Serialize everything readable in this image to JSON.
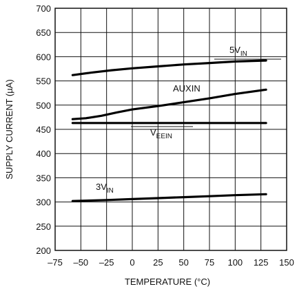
{
  "chart_data": {
    "type": "line",
    "xlabel": "TEMPERATURE (°C)",
    "ylabel": "SUPPLY CURRENT (µA)",
    "xlim": [
      -75,
      150
    ],
    "ylim": [
      200,
      700
    ],
    "x_ticks": [
      -75,
      -50,
      -25,
      0,
      25,
      50,
      75,
      100,
      125,
      150
    ],
    "x_tick_labels": [
      "–75",
      "–50",
      "–25",
      "0",
      "25",
      "50",
      "75",
      "100",
      "125",
      "150"
    ],
    "y_ticks": [
      200,
      250,
      300,
      350,
      400,
      450,
      500,
      550,
      600,
      650,
      700
    ],
    "y_tick_labels": [
      "200",
      "250",
      "300",
      "350",
      "400",
      "450",
      "500",
      "550",
      "600",
      "650",
      "700"
    ],
    "grid": true,
    "series": [
      {
        "name": "5VIN",
        "label_main": "5V",
        "label_sub": "IN",
        "x": [
          -58,
          -40,
          -20,
          0,
          25,
          50,
          75,
          100,
          130
        ],
        "y": [
          562,
          567,
          572,
          576,
          580,
          584,
          587,
          590,
          592
        ]
      },
      {
        "name": "AUXIN",
        "label_main": "AUXIN",
        "label_sub": "",
        "x": [
          -58,
          -45,
          -30,
          -15,
          0,
          25,
          50,
          75,
          100,
          130
        ],
        "y": [
          471,
          473,
          478,
          485,
          491,
          498,
          506,
          514,
          523,
          532
        ]
      },
      {
        "name": "VEEIN",
        "label_main": "V",
        "label_sub": "EEIN",
        "x": [
          -58,
          0,
          50,
          100,
          130
        ],
        "y": [
          463,
          463,
          463,
          463,
          463
        ]
      },
      {
        "name": "3VIN",
        "label_main": "3V",
        "label_sub": "IN",
        "x": [
          -58,
          -25,
          0,
          25,
          50,
          75,
          100,
          130
        ],
        "y": [
          302,
          304,
          306,
          308,
          310,
          312,
          314,
          316
        ]
      }
    ]
  }
}
